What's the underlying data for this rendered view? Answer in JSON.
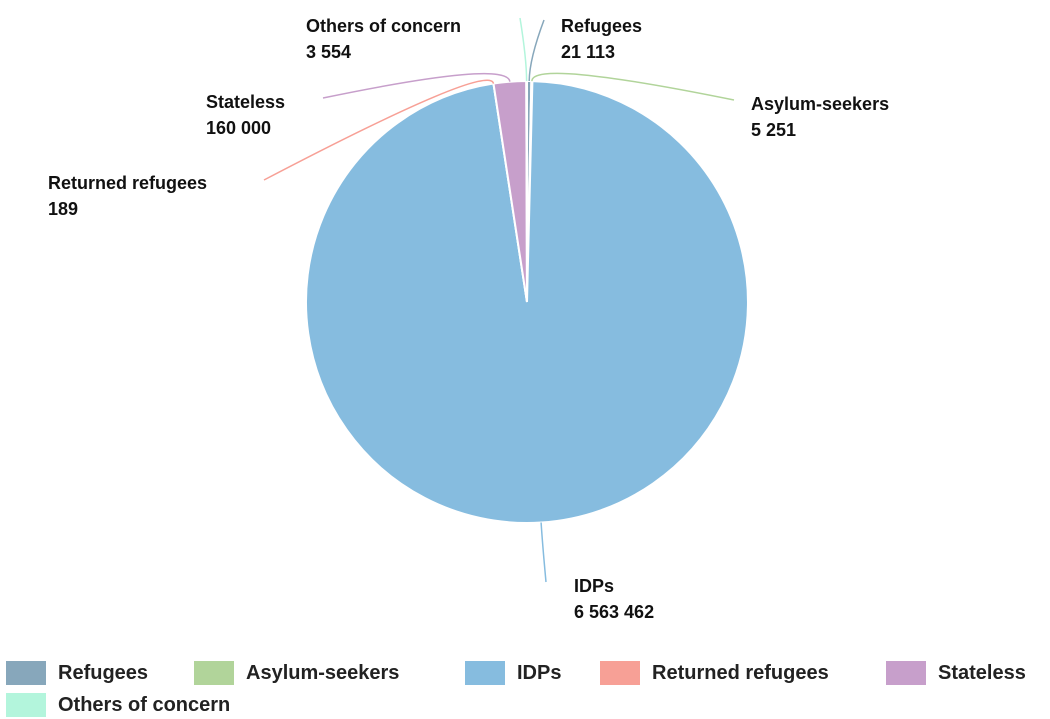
{
  "chart_data": {
    "type": "pie",
    "slices": [
      {
        "name": "Refugees",
        "value": 21113,
        "value_label": "21 113",
        "color": "#87a7bb"
      },
      {
        "name": "Asylum-seekers",
        "value": 5251,
        "value_label": "5 251",
        "color": "#b1d49a"
      },
      {
        "name": "IDPs",
        "value": 6563462,
        "value_label": "6 563 462",
        "color": "#86bcdf"
      },
      {
        "name": "Returned refugees",
        "value": 189,
        "value_label": "189",
        "color": "#f7a096"
      },
      {
        "name": "Stateless",
        "value": 160000,
        "value_label": "160 000",
        "color": "#c79fcb"
      },
      {
        "name": "Others of concern",
        "value": 3554,
        "value_label": "3 554",
        "color": "#b3f5dc"
      }
    ],
    "legend_position": "bottom"
  },
  "legend": {
    "items": [
      {
        "label": "Refugees",
        "color": "#87a7bb"
      },
      {
        "label": "Asylum-seekers",
        "color": "#b1d49a"
      },
      {
        "label": "IDPs",
        "color": "#86bcdf"
      },
      {
        "label": "Returned refugees",
        "color": "#f7a096"
      },
      {
        "label": "Stateless",
        "color": "#c79fcb"
      },
      {
        "label": "Others of concern",
        "color": "#b3f5dc"
      }
    ]
  }
}
